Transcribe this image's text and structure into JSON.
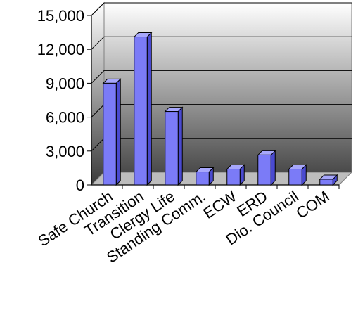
{
  "chart_data": {
    "type": "bar",
    "categories": [
      "Safe Church",
      "Transition",
      "Clergy Life",
      "Standing Comm.",
      "ECW",
      "ERD",
      "Dio. Council",
      "COM"
    ],
    "values": [
      9000,
      13100,
      6500,
      1150,
      1400,
      2650,
      1400,
      500
    ],
    "y_ticks": [
      "0",
      "3,000",
      "6,000",
      "9,000",
      "12,000",
      "15,000"
    ],
    "ylim": [
      0,
      15000
    ],
    "style": "3d-bar",
    "legend": "none",
    "grid": true,
    "colors": {
      "bar_front": "#7b7bf7",
      "bar_top": "#a7a7fb",
      "bar_side": "#4a4ad0",
      "bar_edge": "#000000",
      "back_wall_top": "#ffffff",
      "back_wall_bottom": "#4a4a4a",
      "gridline": "#000000"
    }
  }
}
